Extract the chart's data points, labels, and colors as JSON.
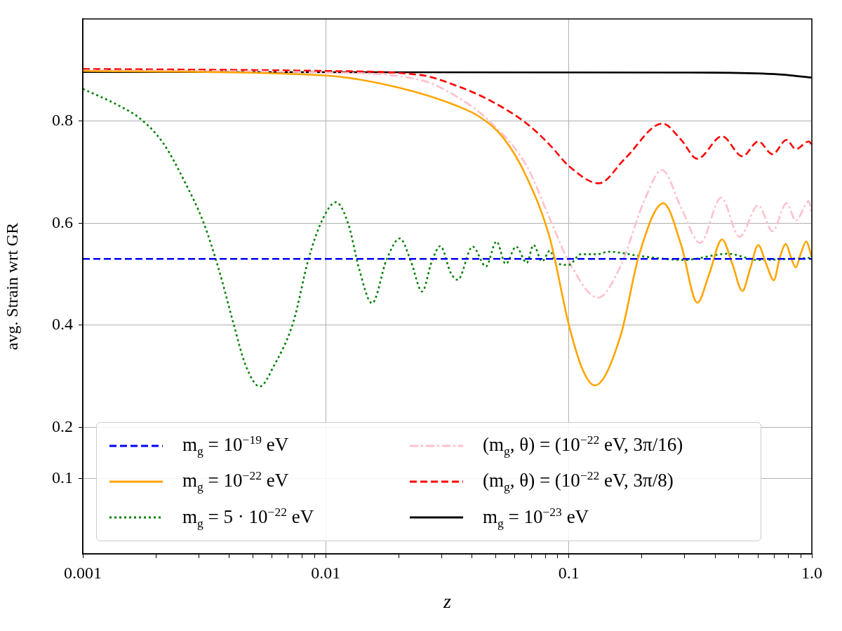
{
  "chart_data": {
    "type": "line",
    "xlabel": "z",
    "ylabel": "avg. Strain wrt GR",
    "log": "x",
    "grid": true,
    "legend": "bottom left",
    "marker": "none",
    "xlim": [
      0.001,
      1.0
    ],
    "xticks": [
      0.001,
      {
        "value": 0.002,
        "label": null
      },
      {
        "value": 0.003,
        "label": null
      },
      {
        "value": 0.004,
        "label": null
      },
      {
        "value": 0.005,
        "label": null
      },
      {
        "value": 0.006,
        "label": null
      },
      {
        "value": 0.007,
        "label": null
      },
      {
        "value": 0.008,
        "label": null
      },
      {
        "value": 0.009,
        "label": null
      },
      0.01,
      {
        "value": 0.02,
        "label": null
      },
      {
        "value": 0.03,
        "label": null
      },
      {
        "value": 0.04,
        "label": null
      },
      {
        "value": 0.05,
        "label": null
      },
      {
        "value": 0.06,
        "label": null
      },
      {
        "value": 0.07,
        "label": null
      },
      {
        "value": 0.08,
        "label": null
      },
      {
        "value": 0.09,
        "label": null
      },
      0.1,
      {
        "value": 0.2,
        "label": null
      },
      {
        "value": 0.3,
        "label": null
      },
      {
        "value": 0.4,
        "label": null
      },
      {
        "value": 0.5,
        "label": null
      },
      {
        "value": 0.6,
        "label": null
      },
      {
        "value": 0.7,
        "label": null
      },
      {
        "value": 0.8,
        "label": null
      },
      {
        "value": 0.9,
        "label": null
      },
      {
        "value": 1.0,
        "label": "1.0"
      }
    ],
    "ylim": [
      -0.048,
      1.0
    ],
    "yticks": [
      0.1,
      0.2,
      0.4,
      0.6,
      0.8
    ],
    "series": [
      {
        "name": "m$_{g}$ = 10$^{−19}$ eV",
        "color": "#0000ff",
        "line_style": "dashed",
        "x": [
          0.001,
          1.0
        ],
        "values": [
          0.53,
          0.53
        ]
      },
      {
        "name": "m$_{g}$ = 10$^{−22}$ eV",
        "color": "#ffa500",
        "line_style": "solid",
        "x": [
          0.001,
          0.01,
          0.0197,
          0.0345,
          0.043,
          0.0538,
          0.0671,
          0.0836,
          0.1,
          0.114,
          0.128,
          0.163,
          0.195,
          0.245,
          0.29,
          0.338,
          0.378,
          0.427,
          0.471,
          0.518,
          0.557,
          0.602,
          0.649,
          0.698,
          0.736,
          0.782,
          0.818,
          0.859,
          0.9,
          0.948,
          1.0
        ],
        "values": [
          0.898,
          0.889,
          0.866,
          0.83,
          0.808,
          0.767,
          0.69,
          0.57,
          0.401,
          0.313,
          0.282,
          0.378,
          0.539,
          0.639,
          0.557,
          0.444,
          0.5,
          0.568,
          0.52,
          0.467,
          0.51,
          0.557,
          0.52,
          0.488,
          0.53,
          0.559,
          0.535,
          0.513,
          0.54,
          0.564,
          0.533
        ]
      },
      {
        "name": "m$_{g}$ = 5 · 10$^{−22}$ eV",
        "color": "#008000",
        "line_style": "dotted",
        "x": [
          0.001,
          0.00141,
          0.00174,
          0.00214,
          0.00262,
          0.00314,
          0.00362,
          0.00415,
          0.00469,
          0.00535,
          0.00611,
          0.00736,
          0.00848,
          0.00967,
          0.011,
          0.0124,
          0.0137,
          0.0155,
          0.0178,
          0.0202,
          0.0224,
          0.0249,
          0.0273,
          0.0296,
          0.0327,
          0.0349,
          0.0402,
          0.0456,
          0.0504,
          0.055,
          0.0607,
          0.0671,
          0.0716,
          0.0776,
          0.0836,
          0.0887,
          0.1,
          0.112,
          0.13,
          0.146,
          0.2,
          0.3,
          0.45,
          0.6,
          1.0
        ],
        "values": [
          0.863,
          0.83,
          0.803,
          0.757,
          0.682,
          0.601,
          0.511,
          0.407,
          0.32,
          0.28,
          0.32,
          0.407,
          0.529,
          0.606,
          0.641,
          0.597,
          0.511,
          0.443,
          0.529,
          0.57,
          0.525,
          0.466,
          0.525,
          0.555,
          0.502,
          0.489,
          0.554,
          0.515,
          0.564,
          0.52,
          0.554,
          0.522,
          0.557,
          0.525,
          0.546,
          0.522,
          0.518,
          0.539,
          0.539,
          0.544,
          0.535,
          0.528,
          0.54,
          0.528,
          0.532
        ]
      },
      {
        "name": "(m$_{g}$, θ) = (10$^{−22}$ eV, 3π/16)",
        "color": "#ffc0cb",
        "line_style": "dashdot",
        "x": [
          0.001,
          0.01,
          0.0247,
          0.0345,
          0.0471,
          0.0671,
          0.0836,
          0.1,
          0.132,
          0.163,
          0.204,
          0.242,
          0.29,
          0.347,
          0.424,
          0.504,
          0.602,
          0.689,
          0.787,
          0.859,
          0.972,
          1.0
        ],
        "values": [
          0.899,
          0.895,
          0.88,
          0.848,
          0.8,
          0.712,
          0.608,
          0.525,
          0.454,
          0.515,
          0.643,
          0.704,
          0.63,
          0.561,
          0.65,
          0.573,
          0.635,
          0.584,
          0.639,
          0.605,
          0.643,
          0.616
        ]
      },
      {
        "name": "(m$_{g}$, θ) = (10$^{−22}$ eV, 3π/8)",
        "color": "#ff0000",
        "line_style": "dashed",
        "x": [
          0.001,
          0.01,
          0.0247,
          0.0345,
          0.0471,
          0.0671,
          0.0836,
          0.1,
          0.133,
          0.17,
          0.243,
          0.29,
          0.338,
          0.427,
          0.518,
          0.602,
          0.689,
          0.787,
          0.859,
          0.972,
          1.0
        ],
        "values": [
          0.902,
          0.898,
          0.89,
          0.869,
          0.841,
          0.795,
          0.753,
          0.712,
          0.678,
          0.726,
          0.795,
          0.763,
          0.726,
          0.77,
          0.731,
          0.76,
          0.735,
          0.763,
          0.745,
          0.76,
          0.753
        ]
      },
      {
        "name": "m$_{g}$ = 10$^{−23}$ eV",
        "color": "#000000",
        "line_style": "solid",
        "x": [
          0.001,
          0.3,
          0.7,
          1.0
        ],
        "values": [
          0.896,
          0.895,
          0.892,
          0.885
        ]
      }
    ]
  }
}
